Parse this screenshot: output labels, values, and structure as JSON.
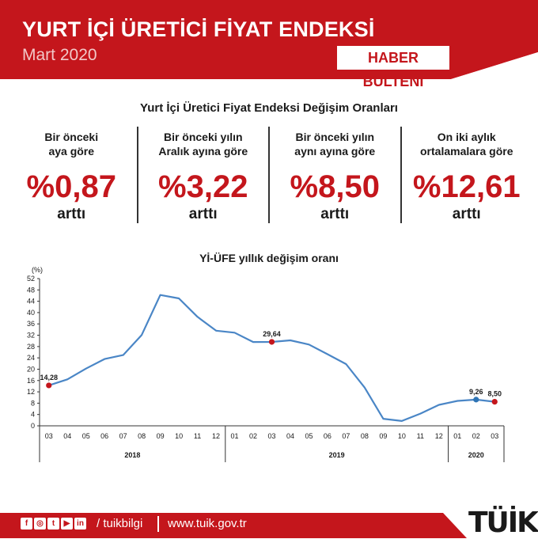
{
  "header": {
    "title": "YURT İÇİ ÜRETİCİ FİYAT ENDEKSİ",
    "period": "Mart 2020",
    "badge": "HABER BÜLTENİ"
  },
  "summary": {
    "title": "Yurt İçi Üretici Fiyat Endeksi Değişim Oranları",
    "items": [
      {
        "label_line1": "Bir önceki",
        "label_line2": "aya göre",
        "value": "%0,87",
        "note": "arttı"
      },
      {
        "label_line1": "Bir önceki yılın",
        "label_line2": "Aralık ayına göre",
        "value": "%3,22",
        "note": "arttı"
      },
      {
        "label_line1": "Bir önceki yılın",
        "label_line2": "aynı ayına göre",
        "value": "%8,50",
        "note": "arttı"
      },
      {
        "label_line1": "On iki aylık",
        "label_line2": "ortalamalara göre",
        "value": "%12,61",
        "note": "arttı"
      }
    ]
  },
  "chart_data": {
    "type": "line",
    "title": "Yİ-ÜFE yıllık değişim oranı",
    "ylabel": "(%)",
    "ylim": [
      0,
      52
    ],
    "yticks": [
      0,
      4,
      8,
      12,
      16,
      20,
      24,
      28,
      32,
      36,
      40,
      44,
      48,
      52
    ],
    "categories": [
      "03",
      "04",
      "05",
      "06",
      "07",
      "08",
      "09",
      "10",
      "11",
      "12",
      "01",
      "02",
      "03",
      "04",
      "05",
      "06",
      "07",
      "08",
      "09",
      "10",
      "11",
      "12",
      "01",
      "02",
      "03"
    ],
    "years": [
      {
        "label": "2018",
        "start": 0,
        "end": 9
      },
      {
        "label": "2019",
        "start": 10,
        "end": 21
      },
      {
        "label": "2020",
        "start": 22,
        "end": 24
      }
    ],
    "series": [
      {
        "values": [
          14.28,
          16.4,
          20.2,
          23.6,
          25.0,
          32.1,
          46.2,
          45.0,
          38.5,
          33.6,
          32.9,
          29.6,
          29.64,
          30.2,
          28.7,
          25.3,
          21.8,
          13.5,
          2.5,
          1.7,
          4.3,
          7.4,
          8.8,
          9.26,
          8.5
        ],
        "color": "#4a86c6"
      }
    ],
    "highlights": [
      {
        "index": 0,
        "label": "14,28",
        "color": "#c4161c"
      },
      {
        "index": 12,
        "label": "29,64",
        "color": "#c4161c"
      },
      {
        "index": 23,
        "label": "9,26",
        "color": "#2e74b5"
      },
      {
        "index": 24,
        "label": "8,50",
        "color": "#c4161c"
      }
    ]
  },
  "footer": {
    "social": [
      "f",
      "◎",
      "t",
      "▶",
      "in"
    ],
    "handle": "/ tuikbilgi",
    "site": "www.tuik.gov.tr",
    "logo": "TÜİK"
  }
}
